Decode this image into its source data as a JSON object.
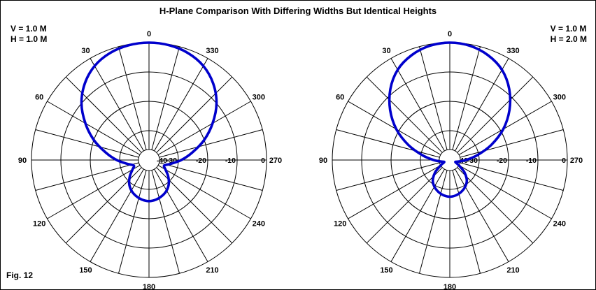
{
  "title": "H-Plane Comparison With Differing Widths But Identical Heights",
  "fig_label": "Fig. 12",
  "plots": [
    {
      "v_label": "V = 1.0 M",
      "h_label": "H = 1.0 M"
    },
    {
      "v_label": "V = 1.0 M",
      "h_label": "H = 2.0 M"
    }
  ],
  "colors": {
    "curve": "#0000cc",
    "grid": "#000000",
    "background": "#ffffff"
  },
  "chart_data": [
    {
      "type": "line",
      "polar": true,
      "title": "H-plane pattern, V = 1.0 M, H = 1.0 M",
      "color": "#0000cc",
      "angle_labels": [
        0,
        30,
        60,
        90,
        120,
        150,
        180,
        210,
        240,
        270,
        300,
        330
      ],
      "radial_ticks_db": [
        -40,
        -30,
        -20,
        -10,
        0
      ],
      "rings_db": [
        0,
        -10,
        -20,
        -30
      ],
      "r_axis_range_db": [
        -40,
        0
      ],
      "spoke_step_deg": 15,
      "grid": true,
      "angle_deg": [
        0,
        10,
        20,
        30,
        40,
        50,
        60,
        70,
        80,
        90,
        100,
        110,
        120,
        130,
        140,
        150,
        160,
        170,
        180,
        190,
        200,
        210,
        220,
        230,
        240,
        250,
        260,
        270,
        280,
        290,
        300,
        310,
        320,
        330,
        340,
        350
      ],
      "gain_db": [
        0,
        -0.3,
        -1.2,
        -3,
        -6,
        -10,
        -15,
        -20,
        -25,
        -29,
        -32.5,
        -34.5,
        -33.5,
        -31.5,
        -29.5,
        -28,
        -27,
        -26.3,
        -26,
        -26.3,
        -27,
        -28,
        -29.5,
        -31.5,
        -33.5,
        -34.5,
        -32.5,
        -29,
        -25,
        -20,
        -15,
        -10,
        -6,
        -3,
        -1.2,
        -0.3
      ]
    },
    {
      "type": "line",
      "polar": true,
      "title": "H-plane pattern, V = 1.0 M, H = 2.0 M",
      "color": "#0000cc",
      "angle_labels": [
        0,
        30,
        60,
        90,
        120,
        150,
        180,
        210,
        240,
        270,
        300,
        330
      ],
      "radial_ticks_db": [
        -40,
        -30,
        -20,
        -10,
        0
      ],
      "rings_db": [
        0,
        -10,
        -20,
        -30
      ],
      "r_axis_range_db": [
        -40,
        0
      ],
      "spoke_step_deg": 15,
      "grid": true,
      "angle_deg": [
        0,
        10,
        20,
        30,
        40,
        50,
        60,
        70,
        80,
        90,
        100,
        110,
        120,
        130,
        140,
        150,
        160,
        170,
        180,
        190,
        200,
        210,
        220,
        230,
        240,
        250,
        260,
        270,
        280,
        290,
        300,
        310,
        320,
        330,
        340,
        350
      ],
      "gain_db": [
        0,
        -0.5,
        -2,
        -4.5,
        -8.5,
        -13.5,
        -19,
        -25,
        -30.5,
        -34.5,
        -37,
        -38,
        -36.5,
        -33.5,
        -31,
        -29.5,
        -28.5,
        -27.8,
        -27.5,
        -27.8,
        -28.5,
        -29.5,
        -31,
        -33.5,
        -36.5,
        -38,
        -37,
        -34.5,
        -30.5,
        -25,
        -19,
        -13.5,
        -8.5,
        -4.5,
        -2,
        -0.5
      ]
    }
  ]
}
